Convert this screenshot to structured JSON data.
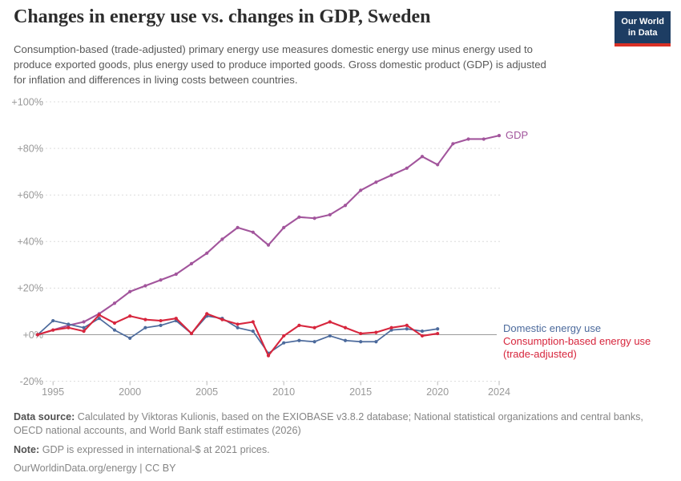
{
  "header": {
    "title": "Changes in energy use vs. changes in GDP, Sweden",
    "subtitle": "Consumption-based (trade-adjusted) primary energy use measures domestic energy use minus energy used to produce exported goods, plus energy used to produce imported goods. Gross domestic product (GDP) is adjusted for inflation and differences in living costs between countries.",
    "logo_line1": "Our World",
    "logo_line2": "in Data"
  },
  "chart_data": {
    "type": "line",
    "title": "Changes in energy use vs. changes in GDP, Sweden",
    "xlabel": "",
    "ylabel": "",
    "ylim": [
      -20,
      100
    ],
    "x_range": [
      1994,
      2024
    ],
    "grid": true,
    "legend_position": "right-end-labels",
    "yticks": [
      {
        "value": 100,
        "label": "+100%"
      },
      {
        "value": 80,
        "label": "+80%"
      },
      {
        "value": 60,
        "label": "+60%"
      },
      {
        "value": 40,
        "label": "+40%"
      },
      {
        "value": 20,
        "label": "+20%"
      },
      {
        "value": 0,
        "label": "+0%"
      },
      {
        "value": -20,
        "label": "-20%"
      }
    ],
    "xticks": [
      {
        "value": 1995,
        "label": "1995"
      },
      {
        "value": 2000,
        "label": "2000"
      },
      {
        "value": 2005,
        "label": "2005"
      },
      {
        "value": 2010,
        "label": "2010"
      },
      {
        "value": 2015,
        "label": "2015"
      },
      {
        "value": 2020,
        "label": "2020"
      },
      {
        "value": 2024,
        "label": "2024"
      }
    ],
    "series": [
      {
        "name": "gdp",
        "color": "#a2559c",
        "label_lines": [
          "GDP"
        ],
        "x": [
          1994,
          1995,
          1996,
          1997,
          1998,
          1999,
          2000,
          2001,
          2002,
          2003,
          2004,
          2005,
          2006,
          2007,
          2008,
          2009,
          2010,
          2011,
          2012,
          2013,
          2014,
          2015,
          2016,
          2017,
          2018,
          2019,
          2020,
          2021,
          2022,
          2023,
          2024
        ],
        "values": [
          0,
          2,
          4,
          5.5,
          9,
          13.5,
          18.5,
          21,
          23.5,
          26,
          30.5,
          35,
          41,
          46,
          44,
          38.5,
          46,
          50.5,
          50,
          51.5,
          55.5,
          62,
          65.5,
          68.5,
          71.5,
          76.5,
          73,
          82,
          84,
          84,
          85.5
        ]
      },
      {
        "name": "domestic-energy-use",
        "color": "#4c6a9c",
        "label_lines": [
          "Domestic energy use"
        ],
        "x": [
          1994,
          1995,
          1996,
          1997,
          1998,
          1999,
          2000,
          2001,
          2002,
          2003,
          2004,
          2005,
          2006,
          2007,
          2008,
          2009,
          2010,
          2011,
          2012,
          2013,
          2014,
          2015,
          2016,
          2017,
          2018,
          2019,
          2020
        ],
        "values": [
          0,
          6,
          4.5,
          3,
          7,
          2,
          -1.5,
          3,
          4,
          6,
          0.5,
          8,
          7,
          3,
          1.5,
          -8,
          -3.5,
          -2.5,
          -3,
          -0.5,
          -2.5,
          -3,
          -3,
          2,
          2.5,
          1.5,
          2.5
        ]
      },
      {
        "name": "consumption-based-energy-use",
        "color": "#d7263d",
        "label_lines": [
          "Consumption-based energy use",
          "(trade-adjusted)"
        ],
        "x": [
          1994,
          1995,
          1996,
          1997,
          1998,
          1999,
          2000,
          2001,
          2002,
          2003,
          2004,
          2005,
          2006,
          2007,
          2008,
          2009,
          2010,
          2011,
          2012,
          2013,
          2014,
          2015,
          2016,
          2017,
          2018,
          2019,
          2020
        ],
        "values": [
          0,
          2,
          3,
          1.5,
          8.5,
          5,
          8,
          6.5,
          6,
          7,
          0.5,
          9,
          6.5,
          4.5,
          5.5,
          -9,
          -0.5,
          4,
          3,
          5.5,
          3,
          0.5,
          1,
          3,
          4,
          -0.5,
          0.5
        ]
      }
    ]
  },
  "footer": {
    "source_label": "Data source:",
    "source_text": "Calculated by Viktoras Kulionis, based on the EXIOBASE v3.8.2 database; National statistical organizations and central banks, OECD national accounts, and World Bank staff estimates (2026)",
    "note_label": "Note:",
    "note_text": "GDP is expressed in international-$ at 2021 prices.",
    "link_text": "OurWorldinData.org/energy | CC BY"
  }
}
